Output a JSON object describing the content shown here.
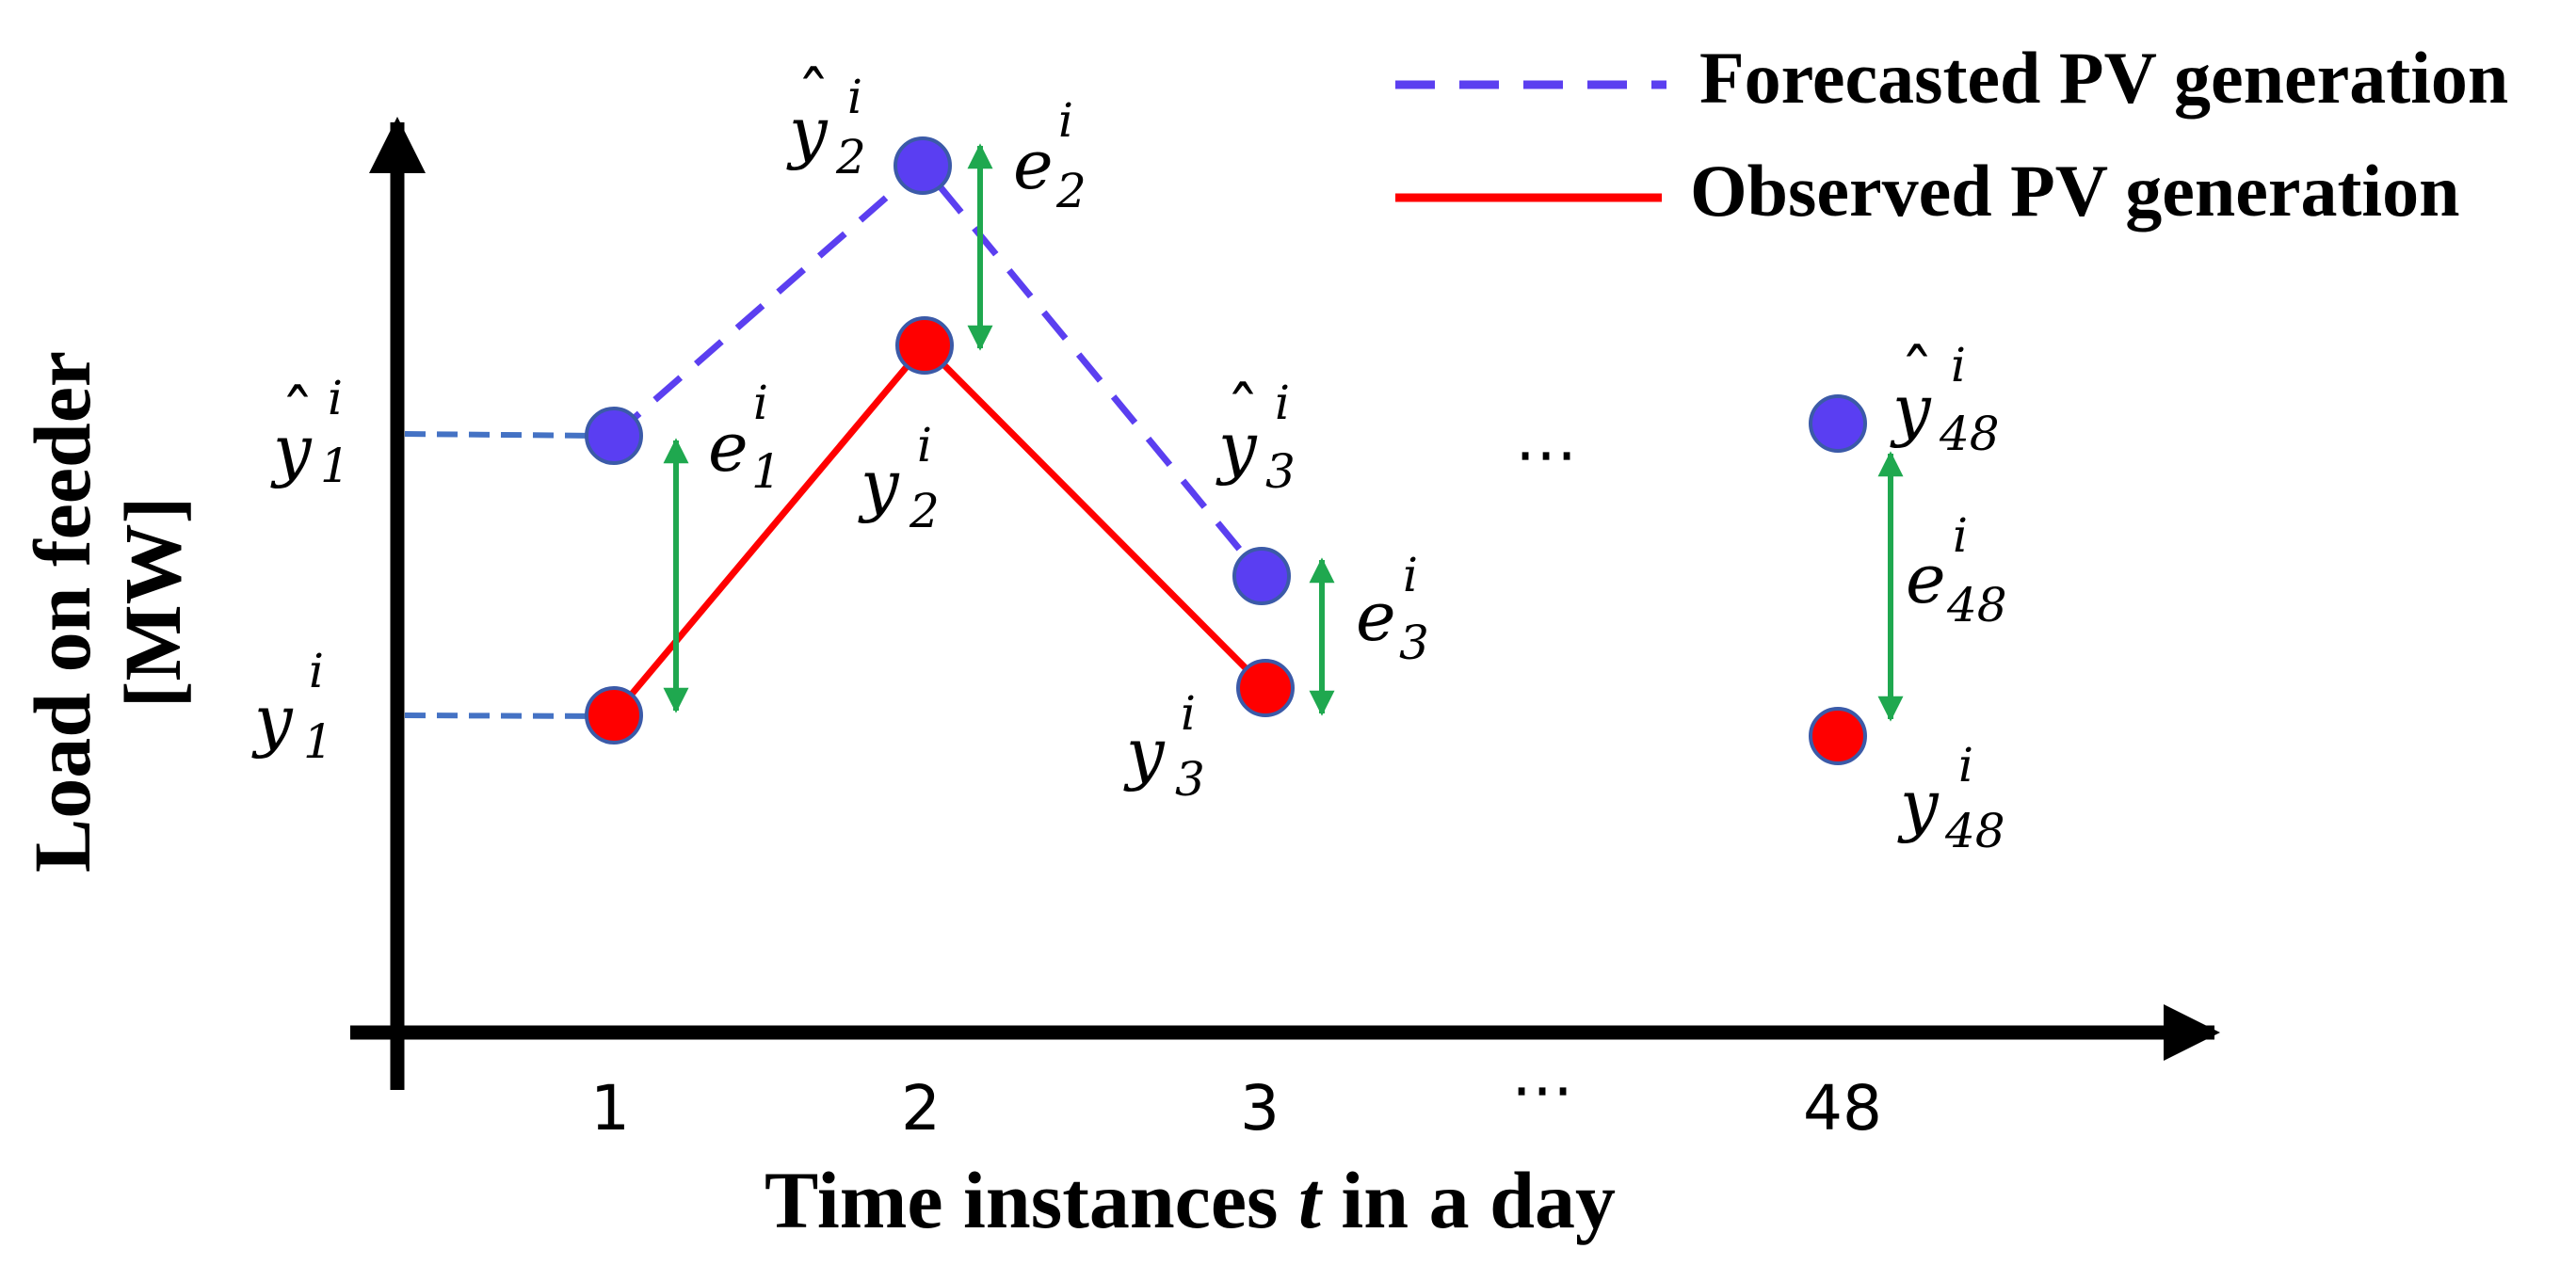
{
  "legend": {
    "forecast_label": "Forecasted PV generation",
    "observed_label": "Observed PV generation"
  },
  "axes": {
    "y_title_line1": "Load on feeder",
    "y_title_line2": "[MW]",
    "x_title_prefix": "Time instances ",
    "x_title_var": "t",
    "x_title_suffix": " in a day",
    "x_ticks": [
      "1",
      "2",
      "3",
      "⋯",
      "48"
    ]
  },
  "ellipsis": "⋯",
  "colors": {
    "forecast": "#5a3ef2",
    "forecast_line": "#5b3ff0",
    "observed": "#ff0000",
    "error": "#1fa84f",
    "guide": "#4472c4",
    "axis": "#000000"
  },
  "points": [
    {
      "t": "1",
      "forecast_base": "y",
      "forecast_hat": "ˆ",
      "forecast_sub": "1",
      "forecast_sup": "i",
      "observed_base": "y",
      "observed_sub": "1",
      "observed_sup": "i",
      "error_base": "e",
      "error_sub": "1",
      "error_sup": "i"
    },
    {
      "t": "2",
      "forecast_base": "y",
      "forecast_hat": "ˆ",
      "forecast_sub": "2",
      "forecast_sup": "i",
      "observed_base": "y",
      "observed_sub": "2",
      "observed_sup": "i",
      "error_base": "e",
      "error_sub": "2",
      "error_sup": "i"
    },
    {
      "t": "3",
      "forecast_base": "y",
      "forecast_hat": "ˆ",
      "forecast_sub": "3",
      "forecast_sup": "i",
      "observed_base": "y",
      "observed_sub": "3",
      "observed_sup": "i",
      "error_base": "e",
      "error_sub": "3",
      "error_sup": "i"
    },
    {
      "t": "48",
      "forecast_base": "y",
      "forecast_hat": "ˆ",
      "forecast_sub": "48",
      "forecast_sup": "i",
      "observed_base": "y",
      "observed_sub": "48",
      "observed_sup": "i",
      "error_base": "e",
      "error_sub": "48",
      "error_sup": "i"
    }
  ]
}
